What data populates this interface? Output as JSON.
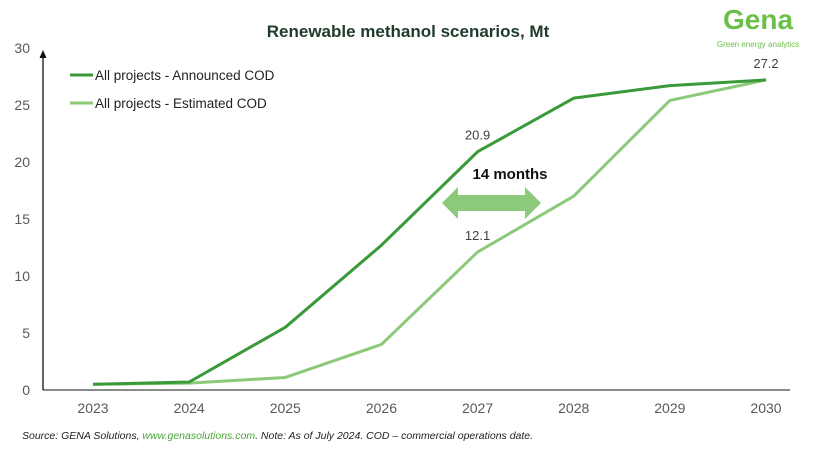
{
  "logo": {
    "name": "Gena",
    "tagline": "Green energy analytics"
  },
  "chart_data": {
    "type": "line",
    "title": "Renewable methanol scenarios, Mt",
    "x": [
      2023,
      2024,
      2025,
      2026,
      2027,
      2028,
      2029,
      2030
    ],
    "ylim": [
      0,
      30
    ],
    "yticks": [
      0,
      5,
      10,
      15,
      20,
      25,
      30
    ],
    "grid": false,
    "legend_position": "top-left",
    "series": [
      {
        "name": "All projects - Announced COD",
        "color": "#3a9a3a",
        "values": [
          0.5,
          0.7,
          5.5,
          12.7,
          20.9,
          25.6,
          26.7,
          27.2
        ]
      },
      {
        "name": "All projects - Estimated COD",
        "color": "#8cc97a",
        "values": [
          0.5,
          0.6,
          1.1,
          4.0,
          12.1,
          17.0,
          25.4,
          27.2
        ]
      }
    ],
    "data_labels": [
      {
        "series": 0,
        "x": 2027,
        "text": "20.9"
      },
      {
        "series": 1,
        "x": 2027,
        "text": "12.1"
      },
      {
        "series": 0,
        "x": 2030,
        "text": "27.2"
      }
    ],
    "annotation": {
      "text": "14 months",
      "arrow": "double-headed horizontal",
      "color": "#8cc97a"
    }
  },
  "footer": {
    "source": "Source: GENA Solutions, ",
    "link": "www.genasolutions.com",
    "note": ". Note: As of July 2024. COD – commercial operations date."
  }
}
